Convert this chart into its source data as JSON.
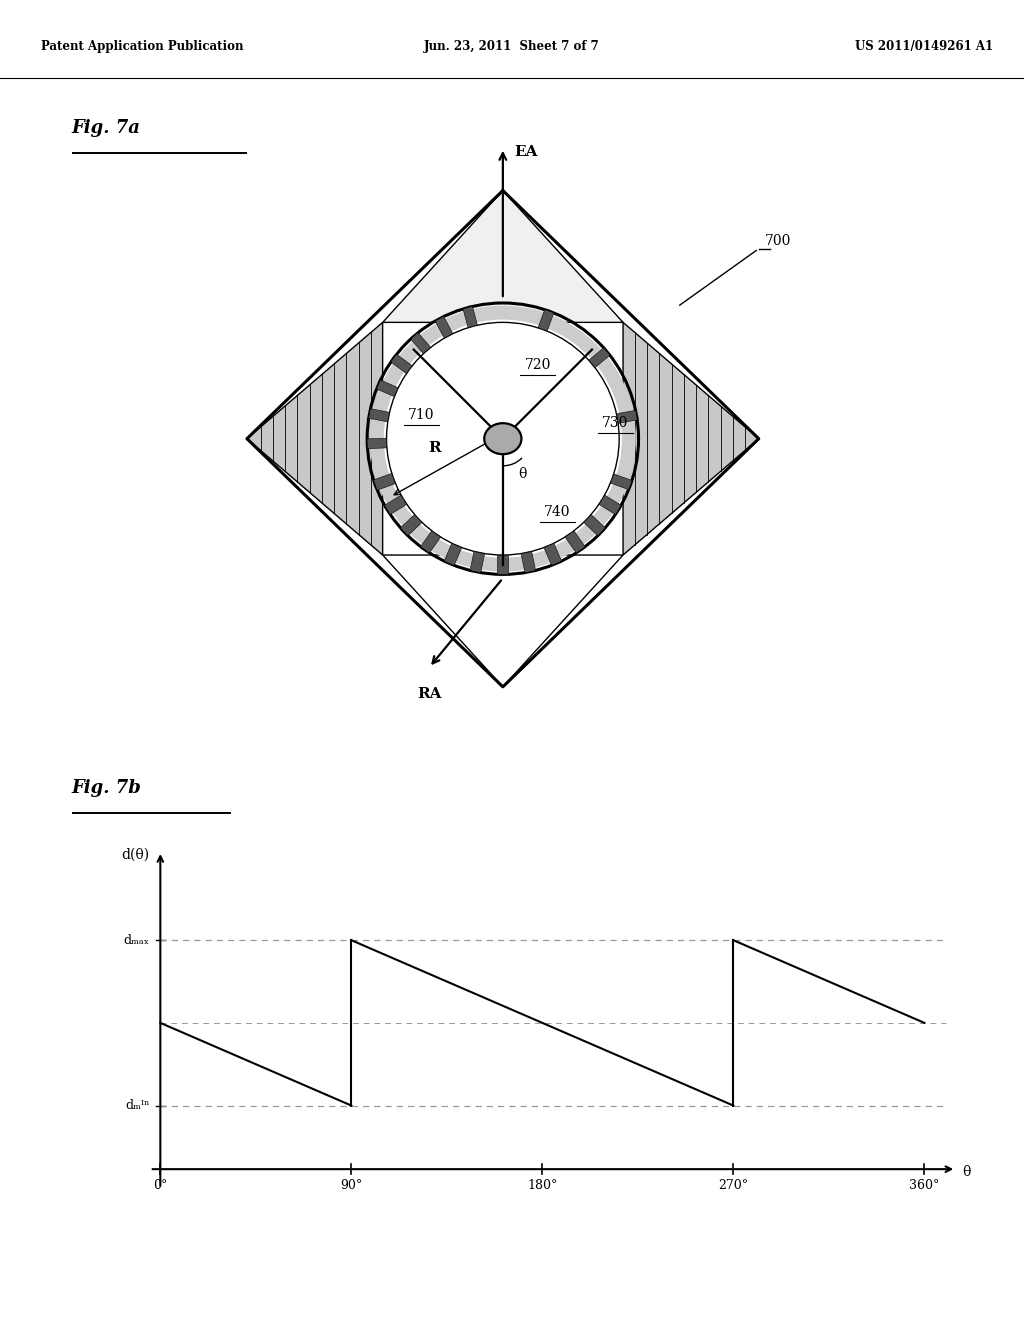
{
  "background_color": "#ffffff",
  "header_left": "Patent Application Publication",
  "header_center": "Jun. 23, 2011  Sheet 7 of 7",
  "header_right": "US 2011/0149261 A1",
  "fig7a_label": "Fig. 7a",
  "fig7b_label": "Fig. 7b",
  "label_700": "700",
  "label_710": "710",
  "label_720": "720",
  "label_730": "730",
  "label_740": "740",
  "label_EA": "EA",
  "label_RA": "RA",
  "label_R": "R",
  "label_theta": "θ",
  "graph_ylabel": "d(θ)",
  "graph_xlabel": "θ",
  "graph_dmax": "dₘₐₓ",
  "graph_dmin": "dₘᴵⁿ",
  "graph_xticks": [
    "0°",
    "90°",
    "180°",
    "270°",
    "360°"
  ],
  "graph_xtick_vals": [
    0,
    90,
    180,
    270,
    360
  ],
  "d_max": 0.72,
  "d_min": 0.2,
  "d_mid": 0.46,
  "line_color": "#000000",
  "dashed_color": "#999999"
}
